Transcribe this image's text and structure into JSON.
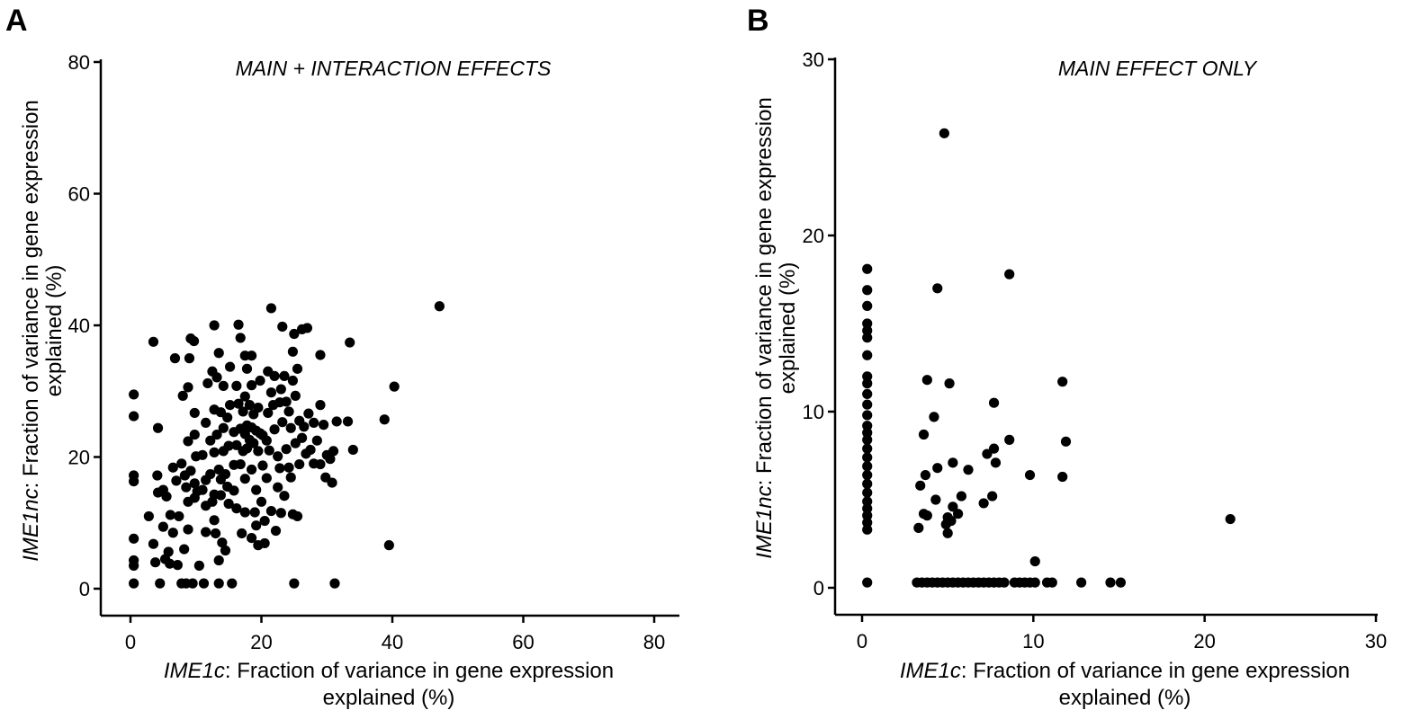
{
  "chart_data": [
    {
      "panel": "A",
      "type": "scatter",
      "title": "MAIN + INTERACTION EFFECTS",
      "xlabel": {
        "gene": "IME1c",
        "rest_line1": ": Fraction of variance in gene expression",
        "line2": "explained (%)"
      },
      "ylabel": {
        "gene": "IME1nc",
        "rest_line1": ": Fraction of variance in gene expression",
        "line2": "explained (%)"
      },
      "xlim": [
        0,
        80
      ],
      "ylim": [
        0,
        80
      ],
      "xticks": [
        0,
        20,
        40,
        60,
        80
      ],
      "yticks": [
        0,
        20,
        40,
        60,
        80
      ],
      "point_color": "#000000",
      "points": [
        [
          0.5,
          29.5
        ],
        [
          0.5,
          26.2
        ],
        [
          0.5,
          17.2
        ],
        [
          0.5,
          16.3
        ],
        [
          0.5,
          7.6
        ],
        [
          0.5,
          4.3
        ],
        [
          0.5,
          3.5
        ],
        [
          0.5,
          0.8
        ],
        [
          2.8,
          11
        ],
        [
          3.5,
          37.5
        ],
        [
          3.5,
          6.8
        ],
        [
          3.8,
          4
        ],
        [
          4.2,
          24.4
        ],
        [
          4.1,
          17.2
        ],
        [
          4.2,
          14.6
        ],
        [
          4.5,
          0.8
        ],
        [
          5,
          15
        ],
        [
          5,
          9.4
        ],
        [
          5.3,
          4.5
        ],
        [
          5.5,
          14
        ],
        [
          5.8,
          5.6
        ],
        [
          6,
          3.8
        ],
        [
          6.1,
          11.2
        ],
        [
          6.5,
          18.4
        ],
        [
          6.5,
          8.5
        ],
        [
          6.8,
          35
        ],
        [
          7,
          16.4
        ],
        [
          7.2,
          3.6
        ],
        [
          7.4,
          11
        ],
        [
          7.8,
          19
        ],
        [
          7.8,
          0.8
        ],
        [
          8,
          29.3
        ],
        [
          8.2,
          6
        ],
        [
          8.3,
          17.2
        ],
        [
          8.5,
          0.8
        ],
        [
          8.5,
          15.4
        ],
        [
          8.8,
          30.6
        ],
        [
          8.8,
          22.4
        ],
        [
          8.8,
          13.2
        ],
        [
          8.8,
          9
        ],
        [
          9,
          35
        ],
        [
          9.2,
          38
        ],
        [
          9.2,
          17.9
        ],
        [
          9.5,
          0.8
        ],
        [
          9.7,
          37.6
        ],
        [
          9.8,
          26.7
        ],
        [
          9.8,
          23.4
        ],
        [
          9.8,
          16
        ],
        [
          9.8,
          13.8
        ],
        [
          10,
          20.1
        ],
        [
          10.2,
          14.8
        ],
        [
          10.5,
          3.5
        ],
        [
          11,
          20.3
        ],
        [
          11,
          15
        ],
        [
          11.2,
          0.8
        ],
        [
          11.5,
          25.2
        ],
        [
          11.5,
          16.5
        ],
        [
          11.5,
          12.6
        ],
        [
          11.5,
          8.6
        ],
        [
          11.8,
          31.2
        ],
        [
          12.2,
          22.5
        ],
        [
          12.2,
          17.4
        ],
        [
          12.5,
          33
        ],
        [
          12.5,
          13.2
        ],
        [
          12.8,
          40
        ],
        [
          12.8,
          27.2
        ],
        [
          12.8,
          20.7
        ],
        [
          12.8,
          14.3
        ],
        [
          12.8,
          10.4
        ],
        [
          13,
          8.4
        ],
        [
          13.2,
          32.1
        ],
        [
          13.2,
          23.4
        ],
        [
          13.5,
          18.1
        ],
        [
          13.5,
          4.3
        ],
        [
          13.5,
          0.8
        ],
        [
          13.5,
          35.8
        ],
        [
          13.8,
          26.8
        ],
        [
          13.8,
          16.6
        ],
        [
          13.8,
          14.2
        ],
        [
          14,
          7
        ],
        [
          14.2,
          30.8
        ],
        [
          14.2,
          24.4
        ],
        [
          14.2,
          20.9
        ],
        [
          14.5,
          17.4
        ],
        [
          14.5,
          5.8
        ],
        [
          14.8,
          26
        ],
        [
          14.8,
          15.5
        ],
        [
          15,
          21.7
        ],
        [
          15,
          12.9
        ],
        [
          15.2,
          33.7
        ],
        [
          15.2,
          27.9
        ],
        [
          15.5,
          0.8
        ],
        [
          15.8,
          23.8
        ],
        [
          15.8,
          18.8
        ],
        [
          15.8,
          14.9
        ],
        [
          16.2,
          30.8
        ],
        [
          16.2,
          21.8
        ],
        [
          16.2,
          12.2
        ],
        [
          16.5,
          40.1
        ],
        [
          16.5,
          28.1
        ],
        [
          16.8,
          38.1
        ],
        [
          16.8,
          24.3
        ],
        [
          16.8,
          18.9
        ],
        [
          17,
          8.4
        ],
        [
          17.2,
          26.9
        ],
        [
          17.2,
          20.9
        ],
        [
          17.5,
          35.4
        ],
        [
          17.5,
          29.2
        ],
        [
          17.5,
          23.5
        ],
        [
          17.5,
          16.7
        ],
        [
          17.5,
          11.6
        ],
        [
          17.8,
          33.4
        ],
        [
          17.8,
          24.8
        ],
        [
          17.8,
          21.3
        ],
        [
          18.2,
          27.9
        ],
        [
          18.2,
          22.6
        ],
        [
          18.5,
          35.4
        ],
        [
          18.5,
          30.9
        ],
        [
          18.5,
          24.5
        ],
        [
          18.5,
          18.1
        ],
        [
          18.5,
          7.7
        ],
        [
          18.8,
          26.5
        ],
        [
          18.8,
          22.1
        ],
        [
          19,
          11.6
        ],
        [
          19.2,
          24
        ],
        [
          19.2,
          15
        ],
        [
          19.2,
          9.6
        ],
        [
          19.5,
          27.5
        ],
        [
          19.5,
          20.9
        ],
        [
          19.5,
          6.6
        ],
        [
          19.8,
          31.6
        ],
        [
          19.8,
          23.6
        ],
        [
          20,
          13.2
        ],
        [
          20.2,
          23.3
        ],
        [
          20.2,
          18.7
        ],
        [
          20.5,
          10.3
        ],
        [
          20.5,
          6.9
        ],
        [
          20.8,
          22.5
        ],
        [
          20.8,
          16.8
        ],
        [
          21,
          33
        ],
        [
          21,
          26.7
        ],
        [
          21.2,
          21
        ],
        [
          21.5,
          42.6
        ],
        [
          21.5,
          29.8
        ],
        [
          21.5,
          11.8
        ],
        [
          21.8,
          27.9
        ],
        [
          22,
          32.3
        ],
        [
          22,
          24.2
        ],
        [
          22.2,
          8.8
        ],
        [
          22.5,
          20.1
        ],
        [
          22.5,
          15.4
        ],
        [
          22.8,
          28.3
        ],
        [
          22.8,
          18.3
        ],
        [
          23,
          30.3
        ],
        [
          23,
          11.5
        ],
        [
          23.2,
          39.8
        ],
        [
          23.2,
          25.3
        ],
        [
          23.5,
          32.3
        ],
        [
          23.5,
          14.1
        ],
        [
          23.8,
          28.4
        ],
        [
          23.8,
          21.2
        ],
        [
          24.2,
          26.9
        ],
        [
          24.2,
          18.4
        ],
        [
          24.5,
          24.4
        ],
        [
          24.5,
          16.9
        ],
        [
          24.8,
          36
        ],
        [
          24.8,
          31.6
        ],
        [
          24.8,
          11.3
        ],
        [
          25,
          38.7
        ],
        [
          25,
          0.8
        ],
        [
          25.2,
          29.3
        ],
        [
          25.2,
          22.1
        ],
        [
          25.5,
          33.4
        ],
        [
          25.5,
          11
        ],
        [
          25.8,
          25.5
        ],
        [
          25.8,
          18.9
        ],
        [
          26.2,
          39.4
        ],
        [
          26.2,
          22.9
        ],
        [
          26.5,
          24.6
        ],
        [
          26.8,
          20.5
        ],
        [
          27,
          39.6
        ],
        [
          27.2,
          26.6
        ],
        [
          27.5,
          21.1
        ],
        [
          28,
          25.2
        ],
        [
          28,
          19
        ],
        [
          28.5,
          22.5
        ],
        [
          29,
          35.5
        ],
        [
          29,
          27.9
        ],
        [
          29,
          18.9
        ],
        [
          29.5,
          24.9
        ],
        [
          29.8,
          16.9
        ],
        [
          30,
          20.3
        ],
        [
          30.5,
          19.7
        ],
        [
          30.8,
          16.1
        ],
        [
          31,
          20.9
        ],
        [
          31.2,
          0.8
        ],
        [
          31.5,
          25.4
        ],
        [
          33.5,
          37.4
        ],
        [
          33.2,
          25.4
        ],
        [
          34,
          21.1
        ],
        [
          38.8,
          25.7
        ],
        [
          39.5,
          6.6
        ],
        [
          40.3,
          30.7
        ],
        [
          47.2,
          42.9
        ]
      ]
    },
    {
      "panel": "B",
      "type": "scatter",
      "title": "MAIN EFFECT ONLY",
      "xlabel": {
        "gene": "IME1c",
        "rest_line1": ": Fraction of variance in gene expression",
        "line2": "explained (%)"
      },
      "ylabel": {
        "gene": "IME1nc",
        "rest_line1": ": Fraction of variance in gene expression",
        "line2": "explained (%)"
      },
      "xlim": [
        0,
        30
      ],
      "ylim": [
        0,
        30
      ],
      "xticks": [
        0,
        10,
        20,
        30
      ],
      "yticks": [
        0,
        10,
        20,
        30
      ],
      "point_color": "#000000",
      "points": [
        [
          0.3,
          18.1
        ],
        [
          0.3,
          16.9
        ],
        [
          0.3,
          16
        ],
        [
          0.3,
          15
        ],
        [
          0.3,
          14.6
        ],
        [
          0.3,
          14.2
        ],
        [
          0.3,
          13.2
        ],
        [
          0.3,
          12
        ],
        [
          0.3,
          11.6
        ],
        [
          0.3,
          11
        ],
        [
          0.3,
          10.4
        ],
        [
          0.3,
          9.8
        ],
        [
          0.3,
          9.2
        ],
        [
          0.3,
          8.8
        ],
        [
          0.3,
          8.4
        ],
        [
          0.3,
          7.9
        ],
        [
          0.3,
          7.4
        ],
        [
          0.3,
          6.9
        ],
        [
          0.3,
          6.4
        ],
        [
          0.3,
          5.9
        ],
        [
          0.3,
          5.4
        ],
        [
          0.3,
          4.9
        ],
        [
          0.3,
          4.5
        ],
        [
          0.3,
          4.1
        ],
        [
          0.3,
          3.7
        ],
        [
          0.3,
          3.3
        ],
        [
          0.3,
          0.3
        ],
        [
          4.8,
          25.8
        ],
        [
          8.6,
          17.8
        ],
        [
          4.4,
          17
        ],
        [
          3.8,
          11.8
        ],
        [
          5.1,
          11.6
        ],
        [
          7.7,
          10.5
        ],
        [
          11.7,
          11.7
        ],
        [
          4.2,
          9.7
        ],
        [
          3.6,
          8.7
        ],
        [
          8.6,
          8.4
        ],
        [
          11.9,
          8.3
        ],
        [
          7.7,
          7.9
        ],
        [
          7.3,
          7.6
        ],
        [
          7.8,
          7.1
        ],
        [
          5.3,
          7.1
        ],
        [
          6.2,
          6.7
        ],
        [
          4.4,
          6.8
        ],
        [
          3.7,
          6.4
        ],
        [
          9.8,
          6.4
        ],
        [
          11.7,
          6.3
        ],
        [
          3.4,
          5.8
        ],
        [
          5.8,
          5.2
        ],
        [
          4.3,
          5
        ],
        [
          7.6,
          5.2
        ],
        [
          7.1,
          4.8
        ],
        [
          5.3,
          4.6
        ],
        [
          5.6,
          4.2
        ],
        [
          3.8,
          4.1
        ],
        [
          3.6,
          4.2
        ],
        [
          5,
          4
        ],
        [
          5.2,
          3.8
        ],
        [
          4.9,
          3.6
        ],
        [
          3.3,
          3.4
        ],
        [
          5,
          3.1
        ],
        [
          21.5,
          3.9
        ],
        [
          10.1,
          1.5
        ],
        [
          3.2,
          0.3
        ],
        [
          3.5,
          0.3
        ],
        [
          3.8,
          0.3
        ],
        [
          4.1,
          0.3
        ],
        [
          4.4,
          0.3
        ],
        [
          4.7,
          0.3
        ],
        [
          5,
          0.3
        ],
        [
          5.3,
          0.3
        ],
        [
          5.6,
          0.3
        ],
        [
          5.9,
          0.3
        ],
        [
          6.2,
          0.3
        ],
        [
          6.5,
          0.3
        ],
        [
          6.8,
          0.3
        ],
        [
          7.1,
          0.3
        ],
        [
          7.4,
          0.3
        ],
        [
          7.7,
          0.3
        ],
        [
          8,
          0.3
        ],
        [
          8.3,
          0.3
        ],
        [
          8.9,
          0.3
        ],
        [
          9.2,
          0.3
        ],
        [
          9.5,
          0.3
        ],
        [
          9.8,
          0.3
        ],
        [
          10.1,
          0.3
        ],
        [
          10.8,
          0.3
        ],
        [
          11.1,
          0.3
        ],
        [
          12.8,
          0.3
        ],
        [
          14.5,
          0.3
        ],
        [
          15.1,
          0.3
        ]
      ]
    }
  ]
}
